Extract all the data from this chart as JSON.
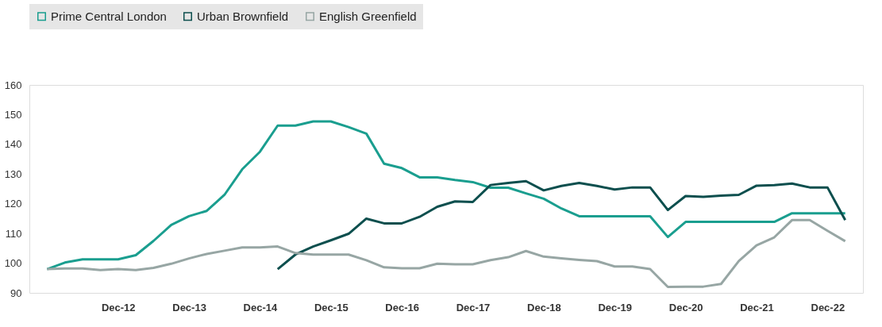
{
  "chart_data": {
    "type": "line",
    "categories": [
      null,
      null,
      null,
      null,
      "Dec-12",
      null,
      null,
      null,
      "Dec-13",
      null,
      null,
      null,
      "Dec-14",
      null,
      null,
      null,
      "Dec-15",
      null,
      null,
      null,
      "Dec-16",
      null,
      null,
      null,
      "Dec-17",
      null,
      null,
      null,
      "Dec-18",
      null,
      null,
      null,
      "Dec-19",
      null,
      null,
      null,
      "Dec-20",
      null,
      null,
      null,
      "Dec-21",
      null,
      null,
      null,
      "Dec-22",
      null
    ],
    "series": [
      {
        "name": "Prime Central London",
        "color": "#1a9e8f",
        "values": [
          98,
          100.2,
          101.3,
          101.3,
          101.3,
          102.7,
          107.5,
          112.9,
          115.8,
          117.6,
          123,
          131.6,
          137.5,
          146.3,
          146.3,
          147.7,
          147.7,
          145.8,
          143.6,
          133.5,
          132,
          128.9,
          128.9,
          128,
          127.3,
          125.4,
          125.4,
          123.5,
          121.7,
          118.4,
          115.8,
          115.8,
          115.8,
          115.8,
          115.8,
          108.8,
          113.9,
          113.9,
          113.9,
          113.9,
          113.9,
          113.9,
          116.8,
          116.8,
          116.8,
          116.8
        ]
      },
      {
        "name": "Urban Brownfield",
        "color": "#0d4f4e",
        "values": [
          null,
          null,
          null,
          null,
          null,
          null,
          null,
          null,
          null,
          null,
          null,
          null,
          null,
          98,
          102.9,
          105.6,
          107.7,
          109.9,
          115,
          113.4,
          113.4,
          115.6,
          119,
          120.8,
          120.6,
          126.3,
          127,
          127.6,
          124.5,
          126,
          127,
          126,
          124.8,
          125.5,
          125.5,
          117.9,
          122.6,
          122.3,
          122.7,
          123,
          126.1,
          126.3,
          126.8,
          125.5,
          125.5,
          114.5
        ]
      },
      {
        "name": "English Greenfield",
        "color": "#97a6a4",
        "values": [
          98,
          98.2,
          98.2,
          97.7,
          98,
          97.7,
          98.4,
          99.8,
          101.6,
          103.1,
          104.2,
          105.3,
          105.3,
          105.6,
          103.4,
          102.9,
          102.9,
          102.9,
          101,
          98.6,
          98.3,
          98.3,
          99.8,
          99.6,
          99.6,
          101,
          102,
          104.1,
          102.2,
          101.6,
          101.1,
          100.7,
          98.9,
          98.9,
          98,
          92,
          92.1,
          92.1,
          93,
          100.7,
          106,
          108.7,
          114.5,
          114.5,
          110.9,
          107.4
        ]
      }
    ],
    "ylim": [
      90,
      160
    ],
    "yticks": [
      90,
      100,
      110,
      120,
      130,
      140,
      150,
      160
    ],
    "grid": false,
    "legend": "top left"
  }
}
